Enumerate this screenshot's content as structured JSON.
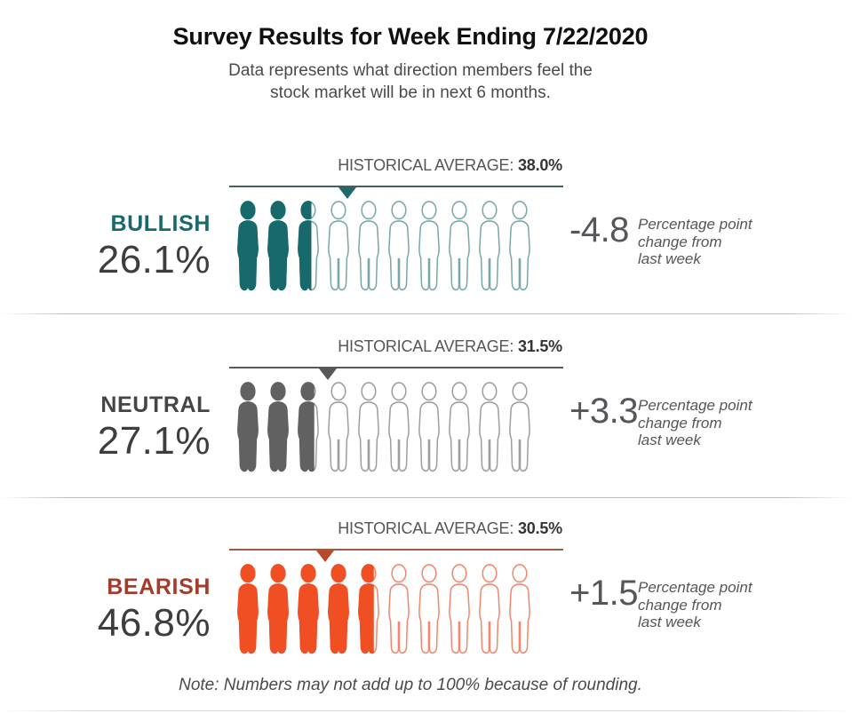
{
  "header": {
    "title": "Survey Results for Week Ending 7/22/2020",
    "subtitle": "Data represents what direction members feel the\nstock market will be in next 6 months."
  },
  "footer": {
    "note": "Note: Numbers may not add up to 100% because of rounding."
  },
  "chart_data": {
    "type": "pictogram-bar",
    "unit_icons_per_row": 10,
    "icon_unit_percent": 10,
    "scale_max_percent": 100,
    "rows": [
      {
        "sentiment": "BULLISH",
        "value_percent": 26.1,
        "value_label": "26.1%",
        "historical_average_label": "HISTORICAL AVERAGE:",
        "historical_average_value": "38.0%",
        "historical_average_percent": 38.0,
        "change_value": -4.8,
        "change_label": "-4.8",
        "change_description": "Percentage point\nchange from\nlast week",
        "fill_color": "#18696b",
        "outline_color": "#79a8a8",
        "label_color": "#18696b",
        "line_color": "#41605f",
        "arrow_color": "#1d6b6d"
      },
      {
        "sentiment": "NEUTRAL",
        "value_percent": 27.1,
        "value_label": "27.1%",
        "historical_average_label": "HISTORICAL AVERAGE:",
        "historical_average_value": "31.5%",
        "historical_average_percent": 31.5,
        "change_value": 3.3,
        "change_label": "+3.3",
        "change_description": "Percentage point\nchange from\nlast week",
        "fill_color": "#616161",
        "outline_color": "#9e9e9e",
        "label_color": "#454545",
        "line_color": "#58585a",
        "arrow_color": "#58585a"
      },
      {
        "sentiment": "BEARISH",
        "value_percent": 46.8,
        "value_label": "46.8%",
        "historical_average_label": "HISTORICAL AVERAGE:",
        "historical_average_value": "30.5%",
        "historical_average_percent": 30.5,
        "change_value": 1.5,
        "change_label": "+1.5",
        "change_description": "Percentage point\nchange from\nlast week",
        "fill_color": "#f04e23",
        "outline_color": "#f2876d",
        "label_color": "#a63a2b",
        "line_color": "#9a5c43",
        "arrow_color": "#b7482e"
      }
    ]
  }
}
